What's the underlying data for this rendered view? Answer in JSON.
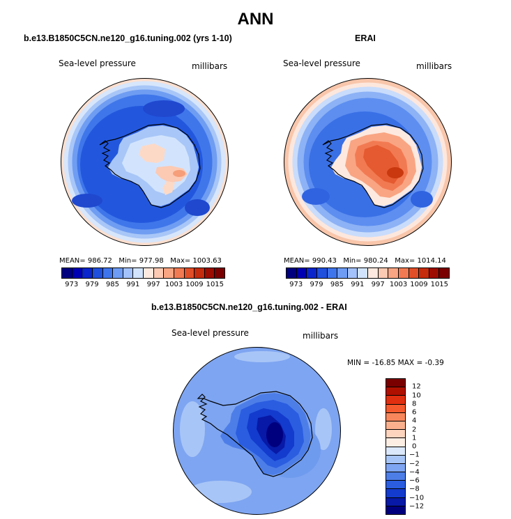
{
  "figure": {
    "title": "ANN"
  },
  "panels": [
    {
      "title": "b.e13.B1850C5CN.ne120_g16.tuning.002 (yrs 1-10)",
      "field_label": "Sea-level pressure",
      "units_label": "millibars",
      "mean_label": "MEAN=",
      "mean": "986.72",
      "min_label": "Min=",
      "min": "977.98",
      "max_label": "Max=",
      "max": "1003.63"
    },
    {
      "title": "ERAI",
      "field_label": "Sea-level pressure",
      "units_label": "millibars",
      "mean_label": "MEAN=",
      "mean": "990.43",
      "min_label": "Min=",
      "min": "980.24",
      "max_label": "Max=",
      "max": "1014.14"
    },
    {
      "title": "b.e13.B1850C5CN.ne120_g16.tuning.002 - ERAI",
      "field_label": "Sea-level pressure",
      "units_label": "millibars",
      "minmax_text": "MIN = -16.85 MAX =  -0.39"
    }
  ],
  "colorbar_top": {
    "colors": [
      "#00007f",
      "#0000b3",
      "#0a25cc",
      "#1f4fdd",
      "#3f75ec",
      "#6e9cf4",
      "#a3c1fa",
      "#d2e4fd",
      "#fde9df",
      "#fcc9b3",
      "#f9a583",
      "#f27a52",
      "#e14f28",
      "#c52b0d",
      "#9c0c00",
      "#7a0000"
    ],
    "tick_labels": [
      "973",
      "979",
      "985",
      "991",
      "997",
      "1003",
      "1009",
      "1015"
    ]
  },
  "colorbar_diff": {
    "colors_top_to_bottom": [
      "#7a0000",
      "#b01000",
      "#e02f10",
      "#f45a2d",
      "#f8875c",
      "#fab08d",
      "#fdd4bd",
      "#fdeee4",
      "#dbe8fb",
      "#a8c5f7",
      "#7ea5f1",
      "#4d7ee8",
      "#2a5de0",
      "#133bcd",
      "#0719a6",
      "#00007f"
    ],
    "tick_labels": [
      "12",
      "10",
      "8",
      "6",
      "4",
      "2",
      "1",
      "0",
      "-1",
      "-2",
      "-4",
      "-6",
      "-8",
      "-10",
      "-12"
    ]
  }
}
